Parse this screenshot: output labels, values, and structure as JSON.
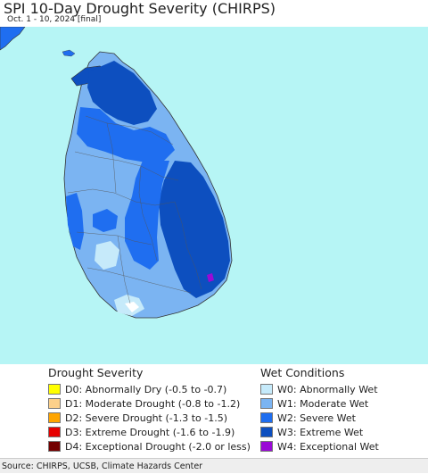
{
  "header": {
    "title": "SPI 10-Day Drought Severity (CHIRPS)",
    "subtitle": "Oct. 1 - 10, 2024 [final]"
  },
  "colors": {
    "ocean": "#b6f5f5",
    "land_outside": "#ffffff",
    "W0": "#c6eafa",
    "W1": "#7bb4f2",
    "W2": "#1f6ef0",
    "W3": "#0d4fbf",
    "W4": "#9a0ad6",
    "D0": "#ffff00",
    "D1": "#fcd08a",
    "D2": "#ffa500",
    "D3": "#e60000",
    "D4": "#730000"
  },
  "legend": {
    "drought": {
      "heading": "Drought Severity",
      "items": [
        {
          "label": "D0: Abnormally Dry (-0.5 to -0.7)",
          "color": "#ffff00"
        },
        {
          "label": "D1: Moderate Drought (-0.8 to -1.2)",
          "color": "#fcd08a"
        },
        {
          "label": "D2: Severe Drought (-1.3 to -1.5)",
          "color": "#ffa500"
        },
        {
          "label": "D3: Extreme Drought (-1.6 to -1.9)",
          "color": "#e60000"
        },
        {
          "label": "D4: Exceptional Drought (-2.0 or less)",
          "color": "#730000"
        }
      ]
    },
    "wet": {
      "heading": "Wet Conditions",
      "items": [
        {
          "label": "W0: Abnormally Wet",
          "color": "#c6eafa"
        },
        {
          "label": "W1: Moderate Wet",
          "color": "#7bb4f2"
        },
        {
          "label": "W2: Severe Wet",
          "color": "#1f6ef0"
        },
        {
          "label": "W3: Extreme Wet",
          "color": "#0d4fbf"
        },
        {
          "label": "W4: Exceptional Wet",
          "color": "#9a0ad6"
        }
      ]
    }
  },
  "footer": {
    "source": "Source: CHIRPS, UCSB, Climate Hazards Center"
  }
}
